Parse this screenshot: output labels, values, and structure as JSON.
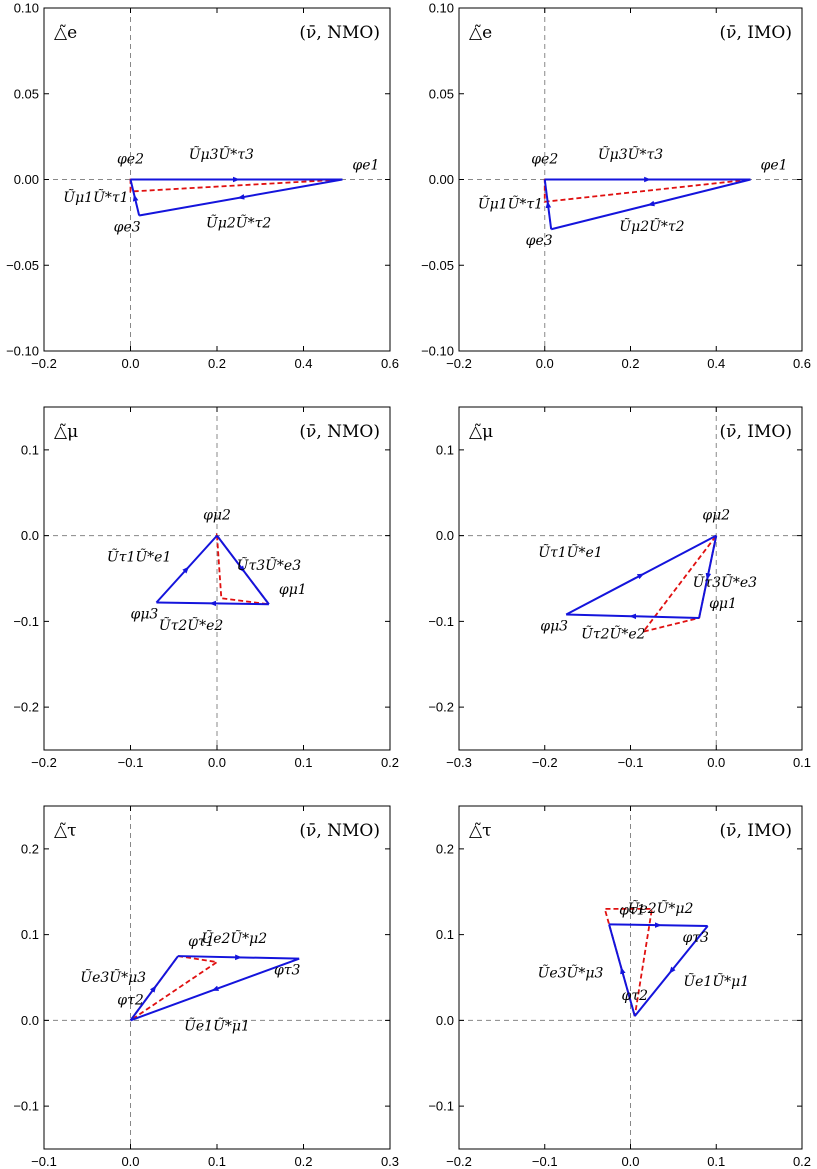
{
  "chart_data": [
    {
      "type": "scatter",
      "panel_symbol": "△̃e",
      "panel_tag": "(ν̄, NMO)",
      "xlim": [
        -0.2,
        0.6
      ],
      "ylim": [
        -0.1,
        0.1
      ],
      "xticks": [
        "−0.2",
        "0.0",
        "0.2",
        "0.4",
        "0.6"
      ],
      "yticks": [
        "−0.10",
        "−0.05",
        "0.00",
        "0.05",
        "0.10"
      ],
      "xtick_values": [
        -0.2,
        0.0,
        0.2,
        0.4,
        0.6
      ],
      "ytick_values": [
        -0.1,
        -0.05,
        0.0,
        0.05,
        0.1
      ],
      "solid_triangle": [
        [
          0.0,
          0.0
        ],
        [
          0.49,
          0.0
        ],
        [
          0.02,
          -0.021
        ]
      ],
      "dashed_triangle": [
        [
          0.0,
          0.0
        ],
        [
          0.49,
          0.0
        ],
        [
          0.0,
          -0.007
        ]
      ],
      "vertex_labels": [
        {
          "text": "φe2",
          "x": 0.0,
          "y": 0.0
        },
        {
          "text": "φe1",
          "x": 0.49,
          "y": 0.0
        },
        {
          "text": "φe3",
          "x": 0.02,
          "y": -0.021
        }
      ],
      "edge_labels": [
        {
          "text": "Ũμ3Ũ*τ3",
          "x": 0.21,
          "y": 0.012
        },
        {
          "text": "Ũμ2Ũ*τ2",
          "x": 0.25,
          "y": -0.028
        },
        {
          "text": "Ũμ1Ũ*τ1",
          "x": -0.08,
          "y": -0.013
        }
      ]
    },
    {
      "type": "scatter",
      "panel_symbol": "△̃e",
      "panel_tag": "(ν̄, IMO)",
      "xlim": [
        -0.2,
        0.6
      ],
      "ylim": [
        -0.1,
        0.1
      ],
      "xticks": [
        "−0.2",
        "0.0",
        "0.2",
        "0.4",
        "0.6"
      ],
      "yticks": [
        "−0.10",
        "−0.05",
        "0.00",
        "0.05",
        "0.10"
      ],
      "xtick_values": [
        -0.2,
        0.0,
        0.2,
        0.4,
        0.6
      ],
      "ytick_values": [
        -0.1,
        -0.05,
        0.0,
        0.05,
        0.1
      ],
      "solid_triangle": [
        [
          0.0,
          0.0
        ],
        [
          0.48,
          0.0
        ],
        [
          0.015,
          -0.029
        ]
      ],
      "dashed_triangle": [
        [
          0.0,
          0.0
        ],
        [
          0.48,
          0.0
        ],
        [
          0.0,
          -0.013
        ]
      ],
      "vertex_labels": [
        {
          "text": "φe2",
          "x": 0.0,
          "y": 0.0
        },
        {
          "text": "φe1",
          "x": 0.48,
          "y": 0.0
        },
        {
          "text": "φe3",
          "x": 0.015,
          "y": -0.029
        }
      ],
      "edge_labels": [
        {
          "text": "Ũμ3Ũ*τ3",
          "x": 0.2,
          "y": 0.012
        },
        {
          "text": "Ũμ2Ũ*τ2",
          "x": 0.25,
          "y": -0.03
        },
        {
          "text": "Ũμ1Ũ*τ1",
          "x": -0.08,
          "y": -0.017
        }
      ]
    },
    {
      "type": "scatter",
      "panel_symbol": "△̃μ",
      "panel_tag": "(ν̄, NMO)",
      "xlim": [
        -0.2,
        0.2
      ],
      "ylim": [
        -0.25,
        0.15
      ],
      "xticks": [
        "−0.2",
        "−0.1",
        "0.0",
        "0.1",
        "0.2"
      ],
      "yticks": [
        "−0.2",
        "−0.1",
        "0.0",
        "0.1"
      ],
      "xtick_values": [
        -0.2,
        -0.1,
        0.0,
        0.1,
        0.2
      ],
      "ytick_values": [
        -0.2,
        -0.1,
        0.0,
        0.1
      ],
      "solid_triangle": [
        [
          0.0,
          0.0
        ],
        [
          0.06,
          -0.08
        ],
        [
          -0.07,
          -0.078
        ]
      ],
      "dashed_triangle": [
        [
          0.0,
          0.0
        ],
        [
          0.06,
          -0.08
        ],
        [
          0.005,
          -0.073
        ]
      ],
      "vertex_labels": [
        {
          "text": "φμ2",
          "x": 0.0,
          "y": 0.0
        },
        {
          "text": "φμ1",
          "x": 0.06,
          "y": -0.08
        },
        {
          "text": "φμ3",
          "x": -0.07,
          "y": -0.078
        }
      ],
      "edge_labels": [
        {
          "text": "Ũτ1Ũ*e1",
          "x": -0.09,
          "y": -0.03
        },
        {
          "text": "Ũτ3Ũ*e3",
          "x": 0.06,
          "y": -0.04
        },
        {
          "text": "Ũτ2Ũ*e2",
          "x": -0.03,
          "y": -0.11
        }
      ]
    },
    {
      "type": "scatter",
      "panel_symbol": "△̃μ",
      "panel_tag": "(ν̄, IMO)",
      "xlim": [
        -0.3,
        0.1
      ],
      "ylim": [
        -0.25,
        0.15
      ],
      "xticks": [
        "−0.3",
        "−0.2",
        "−0.1",
        "0.0",
        "0.1"
      ],
      "yticks": [
        "−0.2",
        "−0.1",
        "0.0",
        "0.1"
      ],
      "xtick_values": [
        -0.3,
        -0.2,
        -0.1,
        0.0,
        0.1
      ],
      "ytick_values": [
        -0.2,
        -0.1,
        0.0,
        0.1
      ],
      "solid_triangle": [
        [
          0.0,
          0.0
        ],
        [
          -0.02,
          -0.096
        ],
        [
          -0.175,
          -0.092
        ]
      ],
      "dashed_triangle": [
        [
          0.0,
          0.0
        ],
        [
          -0.02,
          -0.096
        ],
        [
          -0.085,
          -0.112
        ]
      ],
      "vertex_labels": [
        {
          "text": "φμ2",
          "x": 0.0,
          "y": 0.0
        },
        {
          "text": "φμ1",
          "x": -0.02,
          "y": -0.096
        },
        {
          "text": "φμ3",
          "x": -0.175,
          "y": -0.092
        }
      ],
      "edge_labels": [
        {
          "text": "Ũτ1Ũ*e1",
          "x": -0.17,
          "y": -0.025
        },
        {
          "text": "Ũτ3Ũ*e3",
          "x": 0.01,
          "y": -0.06
        },
        {
          "text": "Ũτ2Ũ*e2",
          "x": -0.12,
          "y": -0.12
        }
      ]
    },
    {
      "type": "scatter",
      "panel_symbol": "△̃τ",
      "panel_tag": "(ν̄, NMO)",
      "xlim": [
        -0.1,
        0.3
      ],
      "ylim": [
        -0.15,
        0.25
      ],
      "xticks": [
        "−0.1",
        "0.0",
        "0.1",
        "0.2",
        "0.3"
      ],
      "yticks": [
        "−0.1",
        "0.0",
        "0.1",
        "0.2"
      ],
      "xtick_values": [
        -0.1,
        0.0,
        0.1,
        0.2,
        0.3
      ],
      "ytick_values": [
        -0.1,
        0.0,
        0.1,
        0.2
      ],
      "solid_triangle": [
        [
          0.0,
          0.0
        ],
        [
          0.055,
          0.075
        ],
        [
          0.195,
          0.072
        ]
      ],
      "dashed_triangle": [
        [
          0.0,
          0.0
        ],
        [
          0.055,
          0.075
        ],
        [
          0.1,
          0.068
        ]
      ],
      "vertex_labels": [
        {
          "text": "φτ2",
          "x": 0.0,
          "y": 0.0
        },
        {
          "text": "φτ1",
          "x": 0.055,
          "y": 0.075
        },
        {
          "text": "φτ3",
          "x": 0.195,
          "y": 0.072
        }
      ],
      "edge_labels": [
        {
          "text": "Ũe2Ũ*μ2",
          "x": 0.12,
          "y": 0.09
        },
        {
          "text": "Ũe3Ũ*μ3",
          "x": -0.02,
          "y": 0.045
        },
        {
          "text": "Ũe1Ũ*μ1",
          "x": 0.1,
          "y": -0.012
        }
      ]
    },
    {
      "type": "scatter",
      "panel_symbol": "△̃τ",
      "panel_tag": "(ν̄, IMO)",
      "xlim": [
        -0.2,
        0.2
      ],
      "ylim": [
        -0.15,
        0.25
      ],
      "xticks": [
        "−0.2",
        "−0.1",
        "0.0",
        "0.1",
        "0.2"
      ],
      "yticks": [
        "−0.1",
        "0.0",
        "0.1",
        "0.2"
      ],
      "xtick_values": [
        -0.2,
        -0.1,
        0.0,
        0.1,
        0.2
      ],
      "ytick_values": [
        -0.1,
        0.0,
        0.1,
        0.2
      ],
      "solid_triangle": [
        [
          0.005,
          0.005
        ],
        [
          -0.025,
          0.112
        ],
        [
          0.09,
          0.11
        ]
      ],
      "dashed_triangle": [
        [
          0.005,
          0.005
        ],
        [
          -0.03,
          0.13
        ],
        [
          0.025,
          0.13
        ]
      ],
      "vertex_labels": [
        {
          "text": "φτ2",
          "x": 0.005,
          "y": 0.005
        },
        {
          "text": "φτ1",
          "x": -0.025,
          "y": 0.112
        },
        {
          "text": "φτ3",
          "x": 0.09,
          "y": 0.11
        }
      ],
      "edge_labels": [
        {
          "text": "Ũe2Ũ*μ2",
          "x": 0.035,
          "y": 0.125
        },
        {
          "text": "Ũe3Ũ*μ3",
          "x": -0.07,
          "y": 0.05
        },
        {
          "text": "Ũe1Ũ*μ1",
          "x": 0.1,
          "y": 0.04
        }
      ]
    }
  ],
  "colors": {
    "solid": "#1414dc",
    "dashed": "#e01010",
    "axes": "#000000",
    "guides": "#888888"
  }
}
